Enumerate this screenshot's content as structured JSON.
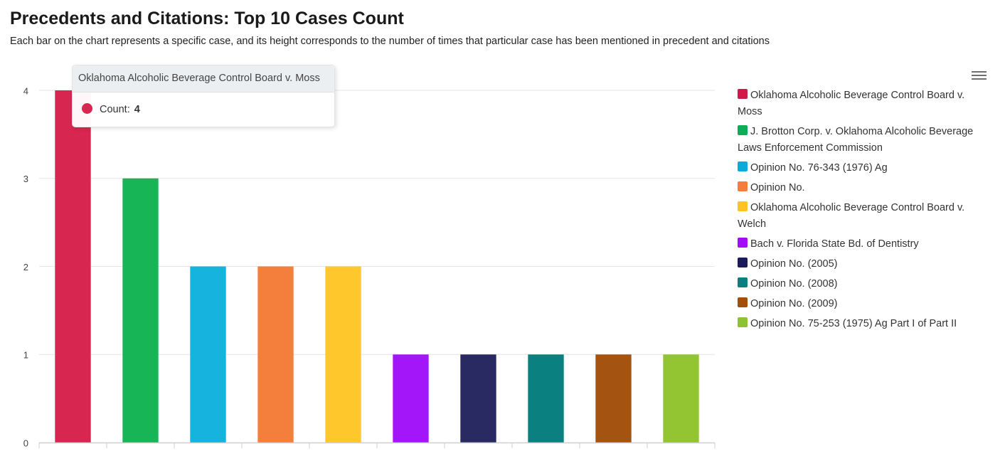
{
  "title": "Precedents and Citations: Top 10 Cases Count",
  "subtitle": "Each bar on the chart represents a specific case, and its height corresponds to the number of times that particular case has been mentioned in precedent and citations",
  "menu_icon": "hamburger-menu-icon",
  "tooltip": {
    "title": "Oklahoma Alcoholic Beverage Control Board v. Moss",
    "label": "Count:",
    "value": "4",
    "color": "#d7264f"
  },
  "chart_data": {
    "type": "bar",
    "title": "Precedents and Citations: Top 10 Cases Count",
    "subtitle": "Each bar on the chart represents a specific case, and its height corresponds to the number of times that particular case has been mentioned in precedent and citations",
    "xlabel": "",
    "ylabel": "",
    "ylim": [
      0,
      4
    ],
    "yticks": [
      0,
      1,
      2,
      3,
      4
    ],
    "grid": true,
    "legend_position": "right",
    "categories": [
      "Oklahoma Alcoholic Beverage Control Board v. Moss",
      "J. Brotton Corp. v. Oklahoma Alcoholic Beverage Laws Enforcement Commission",
      "Opinion No. 76-343 (1976) Ag",
      "Opinion No.",
      "Oklahoma Alcoholic Beverage Control Board v. Welch",
      "Bach v. Florida State Bd. of Dentistry",
      "Opinion No. (2005)",
      "Opinion No. (2008)",
      "Opinion No. (2009)",
      "Opinion No. 75-253 (1975) Ag Part I of Part II"
    ],
    "series": [
      {
        "values": [
          4,
          3,
          2,
          2,
          2,
          1,
          1,
          1,
          1,
          1
        ]
      }
    ],
    "colors": [
      "#d7264f",
      "#18b557",
      "#16b3de",
      "#f47e3c",
      "#fec72b",
      "#a416fa",
      "#2a2a62",
      "#0b8080",
      "#a45410",
      "#92c531"
    ],
    "legend_colors": [
      "#d0164a",
      "#0caf57",
      "#0aaadb",
      "#f47c3c",
      "#fdc323",
      "#a30cf7",
      "#1b1b5b",
      "#0b7f7f",
      "#a24f0b",
      "#8ec232"
    ]
  }
}
